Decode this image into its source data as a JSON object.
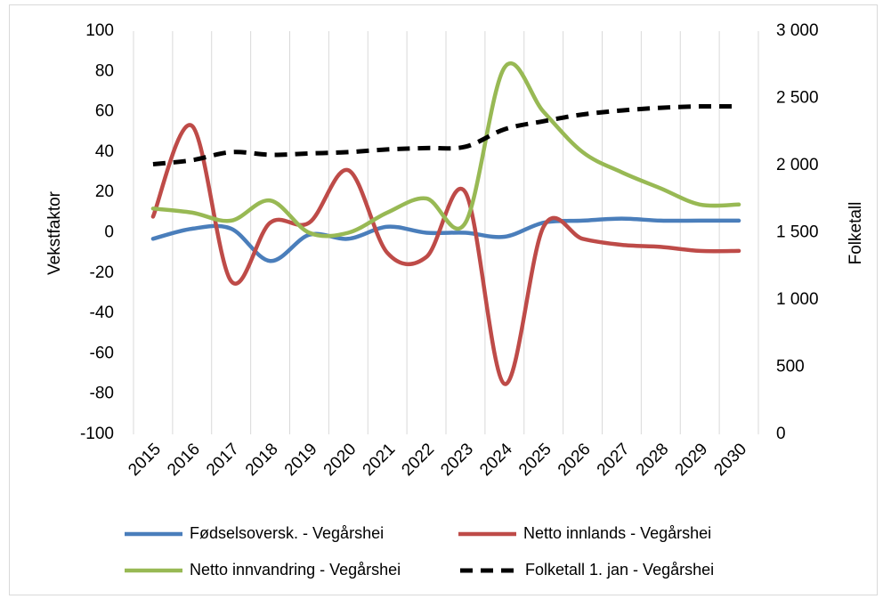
{
  "chart_data": {
    "type": "line",
    "categories": [
      "2015",
      "2016",
      "2017",
      "2018",
      "2019",
      "2020",
      "2021",
      "2022",
      "2023",
      "2024",
      "2025",
      "2026",
      "2027",
      "2028",
      "2029",
      "2030"
    ],
    "y_label": "Vekstfaktor",
    "y2_label": "Folketall",
    "ylim": [
      -100,
      100
    ],
    "yticks": [
      -100,
      -80,
      -60,
      -40,
      -20,
      0,
      20,
      40,
      60,
      80,
      100
    ],
    "y2lim": [
      0,
      3000
    ],
    "y2ticks": [
      0,
      500,
      {
        "value": 1000,
        "label": "1 000"
      },
      {
        "value": 1500,
        "label": "1 500"
      },
      {
        "value": 2000,
        "label": "2 000"
      },
      {
        "value": 2500,
        "label": "2 500"
      },
      {
        "value": 3000,
        "label": "3 000"
      }
    ],
    "series": [
      {
        "name": "Fødselsoversk. - Vegårshei",
        "color": "#4a7ebb",
        "values": [
          -3,
          2,
          2,
          -14,
          -1,
          -3,
          3,
          0,
          0,
          -2,
          5,
          6,
          7,
          6,
          6,
          6
        ]
      },
      {
        "name": "Netto innlands - Vegårshei",
        "color": "#be4b48",
        "values": [
          8,
          53,
          -24,
          5,
          5,
          31,
          -10,
          -12,
          20,
          -75,
          3,
          -3,
          -6,
          -7,
          -9,
          -9
        ]
      },
      {
        "name": "Netto innvandring - Vegårshei",
        "color": "#98b954",
        "values": [
          12,
          10,
          6,
          16,
          0,
          0,
          10,
          17,
          5,
          82,
          60,
          40,
          30,
          22,
          14,
          14
        ]
      },
      {
        "name": "Folketall 1. jan - Vegårshei",
        "color": "#000000",
        "dash": true,
        "axis": "y2",
        "values": [
          2010,
          2040,
          2100,
          2080,
          2090,
          2100,
          2120,
          2130,
          2140,
          2270,
          2330,
          2380,
          2410,
          2430,
          2440,
          2440
        ]
      }
    ]
  }
}
